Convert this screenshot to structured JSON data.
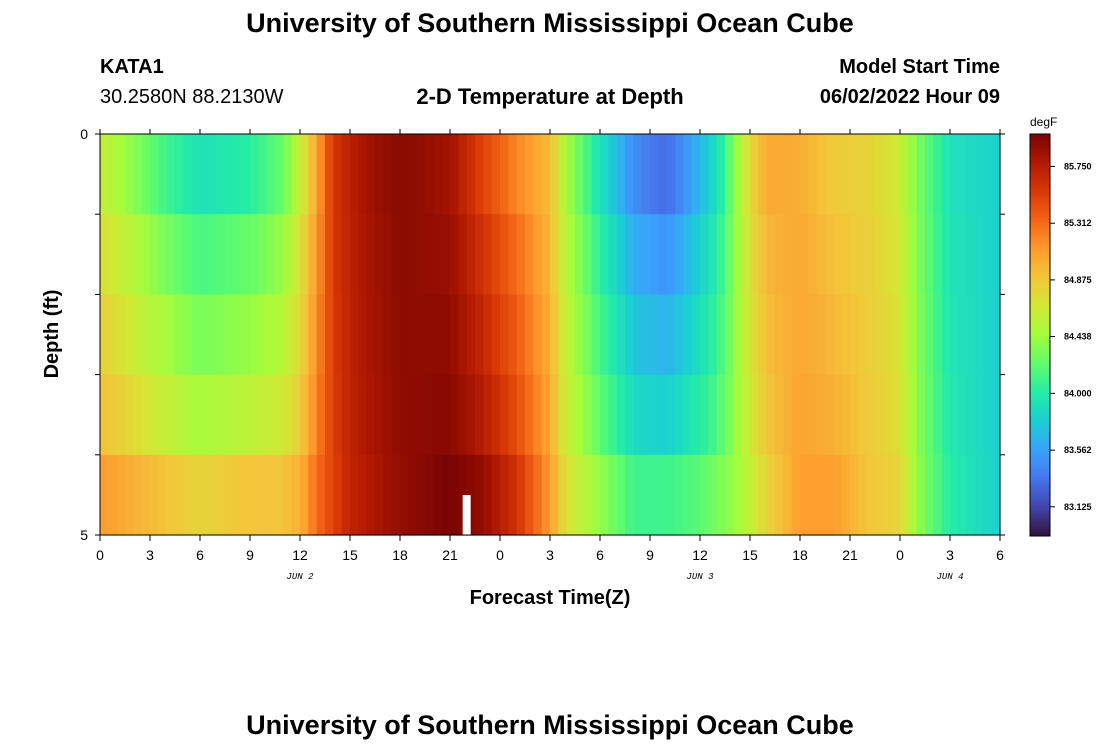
{
  "header": {
    "title": "University of Southern Mississippi Ocean Cube",
    "station": "KATA1",
    "coords": "30.2580N  88.2130W",
    "subtitle": "2-D Temperature at Depth",
    "model_start_label": "Model Start Time",
    "model_start_value": "06/02/2022 Hour 09"
  },
  "footer": {
    "title": "University of Southern Mississippi Ocean Cube"
  },
  "colors": {
    "scale": [
      "#30123b",
      "#4145ab",
      "#4675ed",
      "#39a2fc",
      "#1bcfd4",
      "#24eca6",
      "#61fc6c",
      "#a4fc3b",
      "#d1e834",
      "#f3c63a",
      "#fe9b2d",
      "#f36315",
      "#d93806",
      "#b11901",
      "#7a0403"
    ]
  },
  "chart_data": {
    "type": "heatmap",
    "title": "2-D Temperature at Depth",
    "xlabel": "Forecast Time(Z)",
    "ylabel": "Depth (ft)",
    "x_ticks": [
      "0",
      "3",
      "6",
      "9",
      "12",
      "15",
      "18",
      "21",
      "0",
      "3",
      "6",
      "9",
      "12",
      "15",
      "18",
      "21",
      "0",
      "3",
      "6"
    ],
    "date_labels": [
      {
        "label": "JUN 2",
        "at_hour": 12
      },
      {
        "label": "JUN 3",
        "at_hour": 36
      },
      {
        "label": "JUN 4",
        "at_hour": 51
      }
    ],
    "y_ticks": [
      "0",
      "5"
    ],
    "y_range": [
      0,
      5
    ],
    "x_range_hours": [
      0,
      54
    ],
    "depth_bands": 5,
    "start_marker_hour": 22,
    "colorbar": {
      "unit": "degF",
      "min": 82.9,
      "max": 86.0,
      "labels": [
        "85.750",
        "85.312",
        "84.875",
        "84.438",
        "84.000",
        "83.562",
        "83.125"
      ]
    },
    "surface_profile": [
      [
        0,
        84.5
      ],
      [
        2,
        84.2
      ],
      [
        4,
        83.9
      ],
      [
        6,
        83.7
      ],
      [
        9,
        83.8
      ],
      [
        11,
        84.1
      ],
      [
        12,
        84.5
      ],
      [
        13,
        85.0
      ],
      [
        14,
        85.6
      ],
      [
        16,
        85.85
      ],
      [
        18,
        85.95
      ],
      [
        21,
        85.8
      ],
      [
        23,
        85.4
      ],
      [
        25,
        85.1
      ],
      [
        27,
        84.9
      ],
      [
        28,
        84.4
      ],
      [
        30,
        83.8
      ],
      [
        32,
        83.3
      ],
      [
        34,
        83.1
      ],
      [
        35,
        83.3
      ],
      [
        37,
        83.8
      ],
      [
        38,
        84.3
      ],
      [
        39,
        84.8
      ],
      [
        40,
        85.1
      ],
      [
        42,
        85.0
      ],
      [
        44,
        84.8
      ],
      [
        46,
        84.8
      ],
      [
        48,
        84.6
      ],
      [
        49,
        84.3
      ],
      [
        51,
        83.9
      ],
      [
        54,
        83.8
      ]
    ],
    "bottom_profile": [
      [
        0,
        85.1
      ],
      [
        2,
        85.0
      ],
      [
        4,
        84.9
      ],
      [
        6,
        84.8
      ],
      [
        9,
        84.9
      ],
      [
        11,
        84.9
      ],
      [
        12,
        85.0
      ],
      [
        13,
        85.3
      ],
      [
        15,
        85.7
      ],
      [
        18,
        85.9
      ],
      [
        21,
        86.0
      ],
      [
        23,
        85.9
      ],
      [
        25,
        85.6
      ],
      [
        27,
        85.1
      ],
      [
        28,
        84.7
      ],
      [
        30,
        84.4
      ],
      [
        32,
        84.1
      ],
      [
        34,
        84.1
      ],
      [
        36,
        84.2
      ],
      [
        38,
        84.4
      ],
      [
        40,
        84.8
      ],
      [
        42,
        85.1
      ],
      [
        44,
        85.1
      ],
      [
        46,
        84.9
      ],
      [
        48,
        84.8
      ],
      [
        49,
        84.4
      ],
      [
        51,
        84.0
      ],
      [
        54,
        83.8
      ]
    ],
    "band_weights": [
      0.0,
      0.2,
      0.4,
      0.55,
      0.7,
      1.0
    ]
  }
}
